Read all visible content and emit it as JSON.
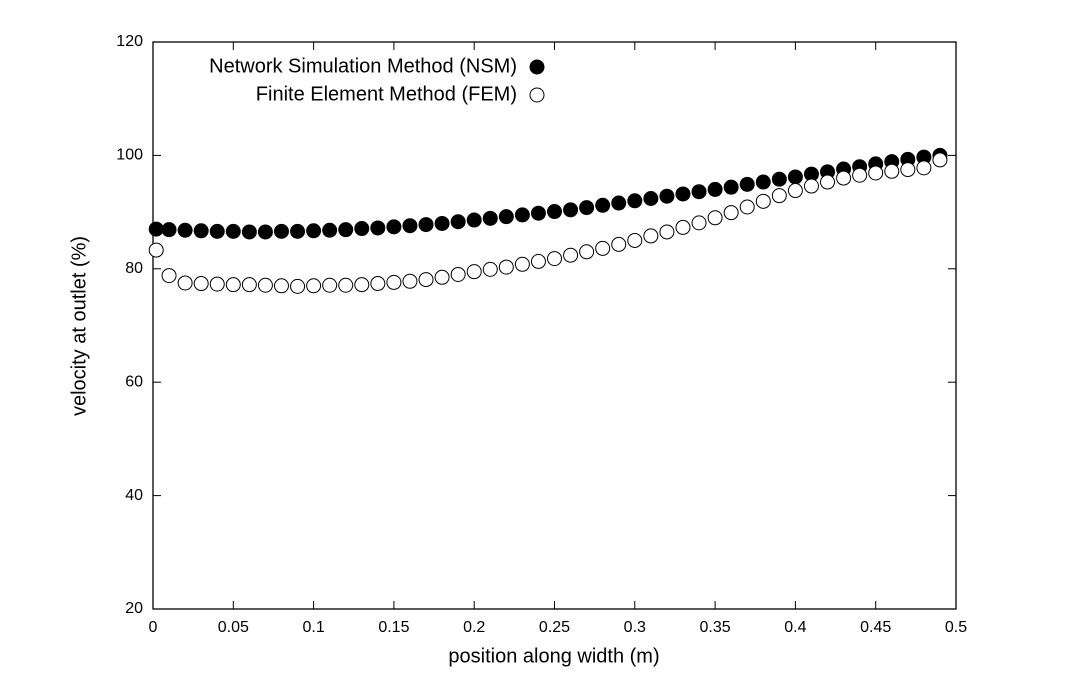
{
  "chart_data": {
    "type": "scatter",
    "xlabel": "position along width (m)",
    "ylabel": "velocity at outlet (%)",
    "xlim": [
      0,
      0.5
    ],
    "ylim": [
      20,
      120
    ],
    "xticks": [
      0,
      0.05,
      0.1,
      0.15,
      0.2,
      0.25,
      0.3,
      0.35,
      0.4,
      0.45,
      0.5
    ],
    "yticks": [
      20,
      40,
      60,
      80,
      100,
      120
    ],
    "legend": "top-left",
    "x": [
      0.002,
      0.01,
      0.02,
      0.03,
      0.04,
      0.05,
      0.06,
      0.07,
      0.08,
      0.09,
      0.1,
      0.11,
      0.12,
      0.13,
      0.14,
      0.15,
      0.16,
      0.17,
      0.18,
      0.19,
      0.2,
      0.21,
      0.22,
      0.23,
      0.24,
      0.25,
      0.26,
      0.27,
      0.28,
      0.29,
      0.3,
      0.31,
      0.32,
      0.33,
      0.34,
      0.35,
      0.36,
      0.37,
      0.38,
      0.39,
      0.4,
      0.41,
      0.42,
      0.43,
      0.44,
      0.45,
      0.46,
      0.47,
      0.48,
      0.49
    ],
    "series": [
      {
        "name": "Network Simulation Method (NSM)",
        "color": "#000000",
        "filled": true,
        "values": [
          87.0,
          86.9,
          86.8,
          86.7,
          86.6,
          86.6,
          86.5,
          86.5,
          86.6,
          86.6,
          86.7,
          86.8,
          86.9,
          87.1,
          87.2,
          87.4,
          87.6,
          87.8,
          88.0,
          88.3,
          88.6,
          88.9,
          89.2,
          89.5,
          89.8,
          90.1,
          90.4,
          90.8,
          91.2,
          91.6,
          92.0,
          92.4,
          92.8,
          93.2,
          93.6,
          94.0,
          94.4,
          94.9,
          95.3,
          95.8,
          96.2,
          96.7,
          97.1,
          97.6,
          98.0,
          98.5,
          98.9,
          99.3,
          99.7,
          100.0
        ]
      },
      {
        "name": "Finite Element Method (FEM)",
        "color": "#000000",
        "filled": false,
        "values": [
          83.3,
          78.8,
          77.5,
          77.4,
          77.3,
          77.2,
          77.2,
          77.1,
          77.0,
          76.9,
          77.0,
          77.1,
          77.1,
          77.2,
          77.4,
          77.6,
          77.8,
          78.1,
          78.5,
          79.0,
          79.5,
          79.9,
          80.3,
          80.8,
          81.3,
          81.8,
          82.4,
          83.0,
          83.6,
          84.3,
          85.0,
          85.8,
          86.5,
          87.3,
          88.1,
          89.0,
          89.9,
          90.9,
          91.9,
          92.9,
          93.8,
          94.6,
          95.3,
          96.0,
          96.5,
          96.9,
          97.2,
          97.5,
          97.8,
          99.2
        ]
      }
    ]
  }
}
